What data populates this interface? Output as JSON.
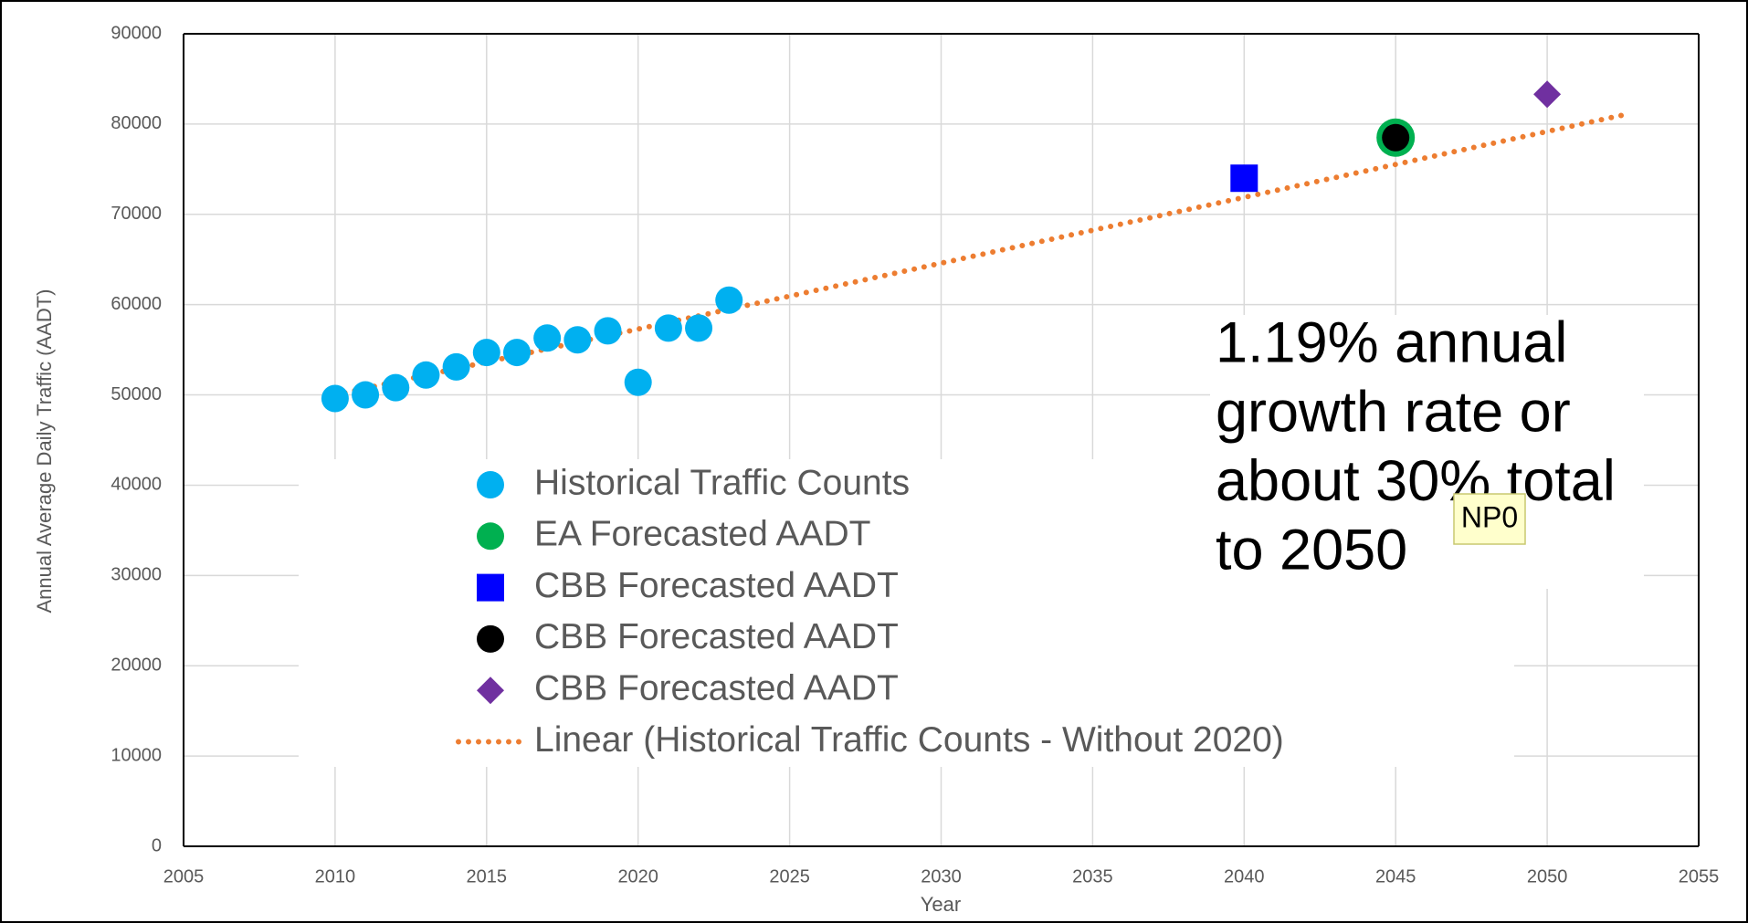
{
  "chart_data": {
    "type": "scatter",
    "x_label": "Year",
    "y_label": "Annual Average Daily Traffic (AADT)",
    "xlim": [
      2005,
      2055
    ],
    "xticks": [
      2005,
      2010,
      2015,
      2020,
      2025,
      2030,
      2035,
      2040,
      2045,
      2050,
      2055
    ],
    "ylim": [
      0,
      90000
    ],
    "yticks": [
      0,
      10000,
      20000,
      30000,
      40000,
      50000,
      60000,
      70000,
      80000,
      90000
    ],
    "grid": true,
    "series": [
      {
        "name": "Historical Traffic Counts",
        "color": "#00b0f0",
        "marker": "circle",
        "x": [
          2010,
          2011,
          2012,
          2013,
          2014,
          2015,
          2016,
          2017,
          2018,
          2019,
          2020,
          2021,
          2022,
          2023
        ],
        "values": [
          49600,
          50000,
          50800,
          52200,
          53100,
          54700,
          54700,
          56300,
          56100,
          57100,
          51400,
          57400,
          57400,
          60500
        ]
      },
      {
        "name": "EA Forecasted AADT",
        "color": "#00b050",
        "marker": "big-circle",
        "x": [
          2045
        ],
        "values": [
          78500
        ]
      },
      {
        "name": "CBB Forecasted AADT",
        "color": "#0000ff",
        "marker": "square",
        "x": [
          2040
        ],
        "values": [
          74000
        ]
      },
      {
        "name": "CBB Forecasted AADT",
        "color": "#000000",
        "marker": "circle",
        "x": [
          2045
        ],
        "values": [
          78500
        ]
      },
      {
        "name": "CBB Forecasted AADT",
        "color": "#7030a0",
        "marker": "diamond",
        "x": [
          2050
        ],
        "values": [
          83300
        ]
      },
      {
        "name": "Linear (Historical Traffic Counts - Without 2020)",
        "color": "#ed7d31",
        "marker": "dotted-line",
        "x": [
          2010,
          2052.5
        ],
        "values": [
          50000,
          81000
        ]
      }
    ],
    "annotation": [
      "1.19% annual",
      "growth rate or",
      "about 30% total",
      "to 2050"
    ],
    "comment_marker": "NP0"
  }
}
